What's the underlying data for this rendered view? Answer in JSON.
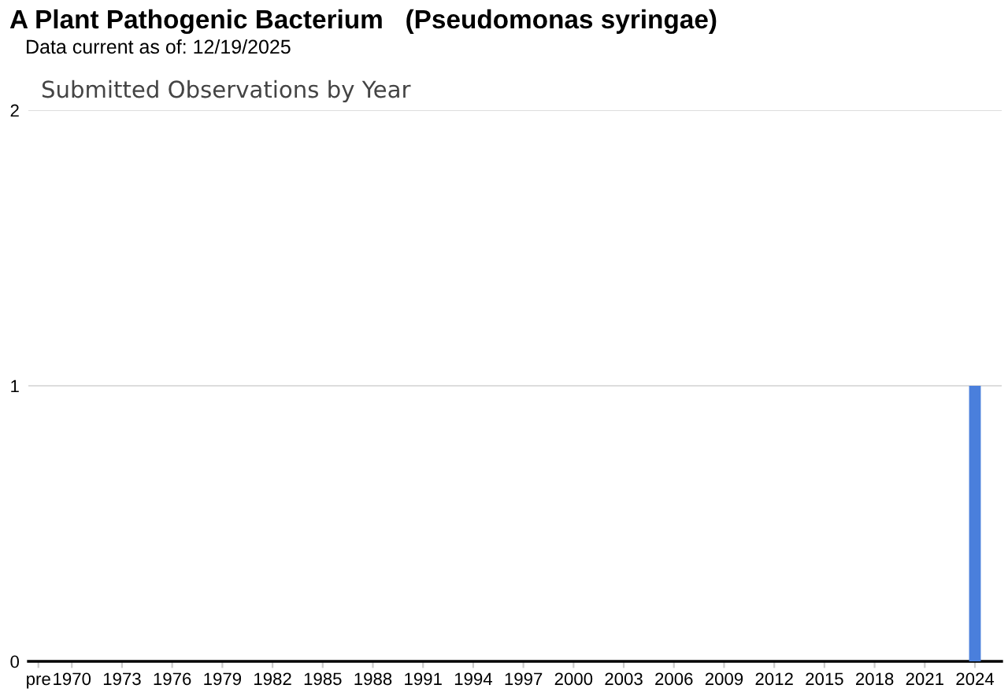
{
  "chart_data": {
    "type": "bar",
    "title": "A Plant Pathogenic Bacterium   (Pseudomonas syringae)",
    "subtitle": "Data current as of: 12/19/2025",
    "annotations": [
      "Submitted Observations by Year"
    ],
    "categories": [
      "pre",
      null,
      "1970",
      null,
      null,
      "1973",
      null,
      null,
      "1976",
      null,
      null,
      "1979",
      null,
      null,
      "1982",
      null,
      null,
      "1985",
      null,
      null,
      "1988",
      null,
      null,
      "1991",
      null,
      null,
      "1994",
      null,
      null,
      "1997",
      null,
      null,
      "2000",
      null,
      null,
      "2003",
      null,
      null,
      "2006",
      null,
      null,
      "2009",
      null,
      null,
      "2012",
      null,
      null,
      "2015",
      null,
      null,
      "2018",
      null,
      null,
      "2021",
      null,
      null,
      "2024",
      null
    ],
    "values": [
      0,
      0,
      0,
      0,
      0,
      0,
      0,
      0,
      0,
      0,
      0,
      0,
      0,
      0,
      0,
      0,
      0,
      0,
      0,
      0,
      0,
      0,
      0,
      0,
      0,
      0,
      0,
      0,
      0,
      0,
      0,
      0,
      0,
      0,
      0,
      0,
      0,
      0,
      0,
      0,
      0,
      0,
      0,
      0,
      0,
      0,
      0,
      0,
      0,
      0,
      0,
      0,
      0,
      0,
      0,
      0,
      1,
      0
    ],
    "color": "#4a7fdc",
    "ylim": [
      0,
      2
    ],
    "yticks": [
      0,
      1,
      2
    ],
    "grid": "y",
    "legend": false
  }
}
